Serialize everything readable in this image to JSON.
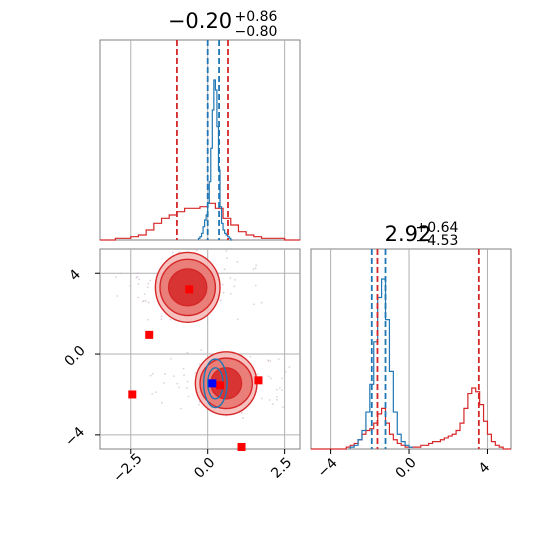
{
  "chart_data": [
    {
      "type": "histogram",
      "panel": "x marginal",
      "title": {
        "main": "−0.20",
        "sup": "+0.86",
        "sub": "−0.80"
      },
      "xlim": [
        -3.5,
        3.0
      ],
      "x_ticks": [
        -2.5,
        0.0,
        2.5
      ],
      "grid": true,
      "series": [
        {
          "name": "",
          "color": "#d62728",
          "bins": [
            -3.5,
            -3.25,
            -3.0,
            -2.75,
            -2.5,
            -2.25,
            -2.0,
            -1.75,
            -1.5,
            -1.25,
            -1.0,
            -0.75,
            -0.5,
            -0.25,
            0.0,
            0.25,
            0.5,
            0.75,
            1.0,
            1.25,
            1.5,
            1.75,
            2.0,
            2.25,
            2.5,
            2.75,
            3.0
          ],
          "values": [
            0,
            0,
            0.01,
            0.01,
            0.02,
            0.03,
            0.06,
            0.1,
            0.13,
            0.15,
            0.17,
            0.19,
            0.19,
            0.2,
            0.22,
            0.19,
            0.13,
            0.09,
            0.05,
            0.03,
            0.02,
            0.01,
            0.01,
            0.01,
            0,
            0
          ],
          "quantile_lines": [
            -1.0,
            0.66
          ]
        },
        {
          "name": "",
          "color": "#1f77b4",
          "bins": [
            -0.3,
            -0.25,
            -0.2,
            -0.15,
            -0.1,
            -0.05,
            0.0,
            0.05,
            0.1,
            0.15,
            0.2,
            0.25,
            0.3,
            0.35,
            0.4,
            0.45,
            0.5,
            0.55,
            0.6,
            0.65,
            0.7,
            0.75,
            0.8
          ],
          "values": [
            0.01,
            0.02,
            0.04,
            0.08,
            0.12,
            0.15,
            0.22,
            0.35,
            0.55,
            0.78,
            0.96,
            0.9,
            0.68,
            0.42,
            0.2,
            0.1,
            0.06,
            0.04,
            0.03,
            0.02,
            0.01,
            0
          ],
          "quantile_lines": [
            0.0,
            0.37
          ]
        }
      ]
    },
    {
      "type": "histogram",
      "panel": "y marginal",
      "title": {
        "main": "2.92",
        "sup": "+0.64",
        "sub": "−4.53"
      },
      "xlim": [
        -5.0,
        5.2
      ],
      "x_ticks": [
        -4,
        0,
        4
      ],
      "grid": true,
      "series": [
        {
          "name": "",
          "color": "#d62728",
          "bins": [
            -5.0,
            -4.8,
            -4.6,
            -4.4,
            -4.2,
            -4.0,
            -3.8,
            -3.6,
            -3.4,
            -3.2,
            -3.0,
            -2.8,
            -2.6,
            -2.4,
            -2.2,
            -2.0,
            -1.8,
            -1.6,
            -1.4,
            -1.2,
            -1.0,
            -0.8,
            -0.6,
            -0.4,
            -0.2,
            0.0,
            0.2,
            0.4,
            0.6,
            0.8,
            1.0,
            1.2,
            1.4,
            1.6,
            1.8,
            2.0,
            2.2,
            2.4,
            2.6,
            2.8,
            3.0,
            3.2,
            3.4,
            3.6,
            3.8,
            4.0,
            4.2,
            4.4,
            4.6,
            4.8,
            5.0,
            5.2
          ],
          "values": [
            0,
            0,
            0,
            0,
            0,
            0,
            0,
            0,
            0,
            0.01,
            0.02,
            0.03,
            0.05,
            0.08,
            0.1,
            0.11,
            0.14,
            0.19,
            0.22,
            0.14,
            0.08,
            0.05,
            0.03,
            0.02,
            0.01,
            0.01,
            0.01,
            0.01,
            0.02,
            0.02,
            0.03,
            0.04,
            0.04,
            0.05,
            0.06,
            0.07,
            0.08,
            0.1,
            0.14,
            0.22,
            0.3,
            0.33,
            0.31,
            0.24,
            0.15,
            0.08,
            0.04,
            0.02,
            0.01,
            0,
            0
          ],
          "quantile_lines": [
            -1.61,
            3.56
          ]
        },
        {
          "name": "",
          "color": "#1f77b4",
          "bins": [
            -3.0,
            -2.8,
            -2.6,
            -2.4,
            -2.2,
            -2.0,
            -1.8,
            -1.6,
            -1.4,
            -1.2,
            -1.0,
            -0.8,
            -0.6,
            -0.4,
            -0.2,
            0.0,
            0.2
          ],
          "values": [
            0.01,
            0.02,
            0.05,
            0.1,
            0.2,
            0.35,
            0.58,
            0.82,
            0.92,
            0.7,
            0.42,
            0.2,
            0.08,
            0.04,
            0.02,
            0.01
          ],
          "quantile_lines": [
            -1.9,
            -1.2
          ]
        }
      ]
    },
    {
      "type": "contour",
      "panel": "2D joint",
      "xlim": [
        -3.5,
        3.0
      ],
      "ylim": [
        -4.7,
        5.2
      ],
      "x_ticks": [
        -2.5,
        0.0,
        2.5
      ],
      "y_ticks": [
        -4,
        0,
        4
      ],
      "grid": true,
      "series": [
        {
          "name": "",
          "color": "#d62728",
          "modes": [
            {
              "cx": -0.65,
              "cy": 3.3,
              "levels": [
                [
                  1.05,
                  0.72
                ],
                [
                  0.9,
                  0.58
                ],
                [
                  0.62,
                  0.38
                ]
              ]
            },
            {
              "cx": 0.6,
              "cy": -1.45,
              "levels": [
                [
                  1.0,
                  0.65
                ],
                [
                  0.85,
                  0.52
                ],
                [
                  0.5,
                  0.32
                ]
              ]
            }
          ],
          "markers": [
            [
              -0.6,
              3.2
            ],
            [
              -1.9,
              0.95
            ],
            [
              -2.45,
              -2.0
            ],
            [
              1.65,
              -1.3
            ],
            [
              1.1,
              -4.6
            ],
            [
              0.4,
              -1.55
            ]
          ]
        },
        {
          "name": "",
          "color": "#1f77b4",
          "modes": [
            {
              "cx": 0.25,
              "cy": -1.45,
              "levels": [
                [
                  0.38,
                  0.5
                ],
                [
                  0.25,
                  0.32
                ]
              ]
            }
          ],
          "markers": [
            [
              0.15,
              -1.45
            ]
          ]
        }
      ]
    }
  ]
}
